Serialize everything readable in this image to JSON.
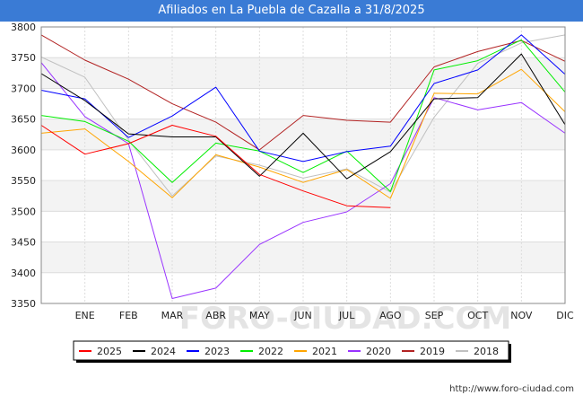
{
  "title": "Afiliados en La Puebla de Cazalla a 31/8/2025",
  "credit": "http://www.foro-ciudad.com",
  "watermark": "FORO-CIUDAD.COM",
  "chart_data": {
    "type": "line",
    "categories": [
      "",
      "ENE",
      "FEB",
      "MAR",
      "ABR",
      "MAY",
      "JUN",
      "JUL",
      "AGO",
      "SEP",
      "OCT",
      "NOV",
      "DIC"
    ],
    "yticks": [
      3350,
      3400,
      3450,
      3500,
      3550,
      3600,
      3650,
      3700,
      3750,
      3800
    ],
    "ylim": [
      3350,
      3800
    ],
    "grid": true,
    "legend_position": "bottom",
    "series": [
      {
        "name": "2025",
        "color": "#ff0000",
        "values": [
          3640,
          3593,
          3610,
          3640,
          3622,
          3560,
          3533,
          3509,
          3506,
          null,
          null,
          null,
          null
        ]
      },
      {
        "name": "2024",
        "color": "#000000",
        "values": [
          3724,
          3680,
          3626,
          3621,
          3621,
          3557,
          3627,
          3553,
          3597,
          3683,
          3685,
          3756,
          3641
        ]
      },
      {
        "name": "2023",
        "color": "#0000ff",
        "values": [
          3697,
          3683,
          3620,
          3655,
          3702,
          3598,
          3581,
          3597,
          3606,
          3708,
          3730,
          3787,
          3723
        ]
      },
      {
        "name": "2022",
        "color": "#00ee00",
        "values": [
          3656,
          3646,
          3614,
          3547,
          3611,
          3598,
          3563,
          3598,
          3532,
          3730,
          3745,
          3779,
          3694
        ]
      },
      {
        "name": "2021",
        "color": "#ffa500",
        "values": [
          3627,
          3634,
          3581,
          3522,
          3592,
          3572,
          3547,
          3568,
          3521,
          3692,
          3691,
          3731,
          3662
        ]
      },
      {
        "name": "2020",
        "color": "#9933ff",
        "values": [
          3742,
          3654,
          3610,
          3358,
          3375,
          3446,
          3482,
          3499,
          3545,
          3685,
          3665,
          3677,
          3627
        ]
      },
      {
        "name": "2019",
        "color": "#b22222",
        "values": [
          3787,
          3746,
          3715,
          3675,
          3645,
          3600,
          3656,
          3648,
          3645,
          3735,
          3760,
          3778,
          3744
        ]
      },
      {
        "name": "2018",
        "color": "#c0c0c0",
        "values": [
          3751,
          3718,
          3616,
          3525,
          3590,
          3575,
          3554,
          3569,
          3531,
          3653,
          3741,
          3774,
          3787
        ]
      }
    ]
  }
}
